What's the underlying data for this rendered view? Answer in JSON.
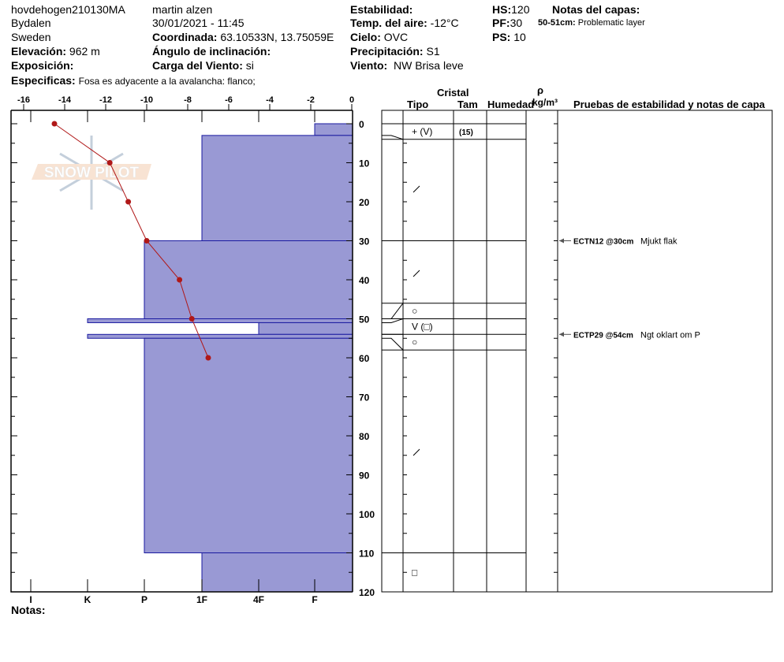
{
  "header": {
    "site": "hovdehogen210130MA",
    "location": "Bydalen",
    "country": "Sweden",
    "elevation_label": "Elevación:",
    "elevation": "962 m",
    "aspect_label": "Exposición:",
    "aspect": "",
    "observer": "martin alzen",
    "datetime": "30/01/2021 - 11:45",
    "coord_label": "Coordinada:",
    "coord": "63.10533N, 13.75059E",
    "slope_label": "Ángulo de inclinación:",
    "slope": "",
    "windload_label": "Carga del Viento:",
    "windload": "si",
    "stability_label": "Estabilidad:",
    "stability": "",
    "airtemp_label": "Temp. del aire:",
    "airtemp": "-12°C",
    "sky_label": "Cielo:",
    "sky": "OVC",
    "precip_label": "Precipitación:",
    "precip": "S1",
    "wind_label": "Viento:",
    "wind": "NW Brisa leve",
    "hs_label": "HS:",
    "hs": "120",
    "pf_label": "PF:",
    "pf": "30",
    "ps_label": "PS:",
    "ps": "10",
    "layer_notes_label": "Notas del capas:",
    "layer_note_depth": "50-51cm:",
    "layer_note": "Problematic layer",
    "specifics_label": "Especificas:",
    "specifics": "Fosa es adyacente a la avalancha: flanco;"
  },
  "notes_label": "Notas:",
  "table_headers": {
    "crystal": "Cristal",
    "type": "Tipo",
    "size": "Tam",
    "moisture": "Humedad",
    "rho": "ρ",
    "density_unit": "kg/m³",
    "tests": "Pruebas de estabilidad y notas de capa"
  },
  "logo_text": "SNOW PILOT",
  "colors": {
    "hardness_fill": "#9999d4",
    "hardness_stroke": "#1a1aa0",
    "temp": "#b01818"
  },
  "chart_data": {
    "type": "snow-profile",
    "temperature": {
      "xlim": [
        -16,
        0
      ],
      "ticks": [
        "-16",
        "-14",
        "-12",
        "-10",
        "-8",
        "-6",
        "-4",
        "-2",
        "0"
      ],
      "depth": [
        0,
        10,
        20,
        30,
        40,
        50,
        60
      ],
      "values": [
        -14.5,
        -11.8,
        -10.9,
        -10,
        -8.4,
        -7.8,
        -7.0
      ]
    },
    "depth": {
      "ylim": [
        0,
        120
      ],
      "ticks": [
        "0",
        "10",
        "20",
        "30",
        "40",
        "50",
        "60",
        "70",
        "80",
        "90",
        "100",
        "110",
        "120"
      ]
    },
    "hardness_scale": [
      "I",
      "K",
      "P",
      "1F",
      "4F",
      "F"
    ],
    "hardness_layers": [
      {
        "top": 0,
        "bottom": 3,
        "hardness": "F"
      },
      {
        "top": 3,
        "bottom": 30,
        "hardness": "1F"
      },
      {
        "top": 30,
        "bottom": 50,
        "hardness": "P"
      },
      {
        "top": 50,
        "bottom": 51,
        "hardness": "K"
      },
      {
        "top": 51,
        "bottom": 54,
        "hardness": "4F"
      },
      {
        "top": 54,
        "bottom": 55,
        "hardness": "K"
      },
      {
        "top": 55,
        "bottom": 110,
        "hardness": "P"
      },
      {
        "top": 110,
        "bottom": 120,
        "hardness": "1F"
      }
    ],
    "crystal_rows": [
      {
        "grain": "+ (V)",
        "size": "(15)"
      },
      {
        "grain": "/",
        "size": ""
      },
      {
        "grain": "/",
        "size": ""
      },
      {
        "grain": "○",
        "size": ""
      },
      {
        "grain": "V (□)",
        "size": ""
      },
      {
        "grain": "○",
        "size": ""
      },
      {
        "grain": "/",
        "size": ""
      },
      {
        "grain": "□",
        "size": ""
      }
    ],
    "tests": [
      {
        "depth": 30,
        "code": "ECTN12 @30cm",
        "note": "Mjukt flak"
      },
      {
        "depth": 54,
        "code": "ECTP29 @54cm",
        "note": "Ngt oklart om P"
      }
    ]
  }
}
